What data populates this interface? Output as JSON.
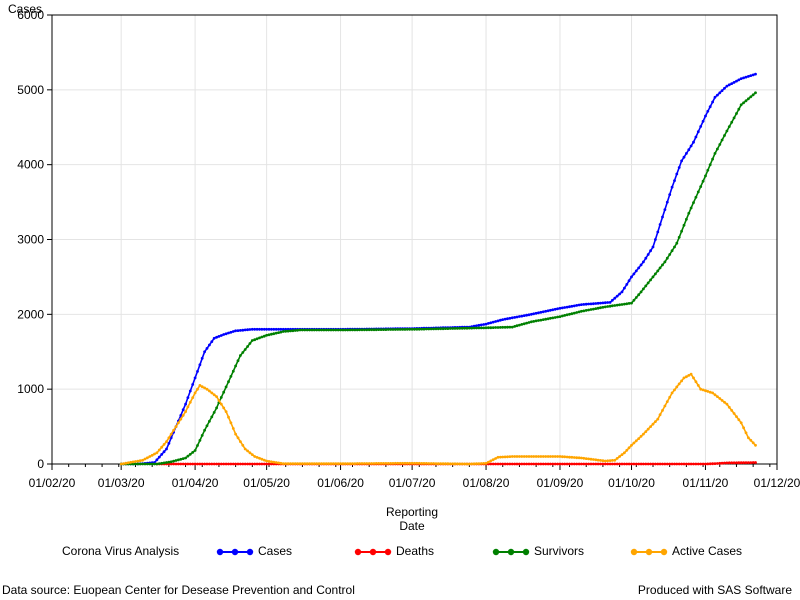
{
  "chart_data": {
    "type": "line",
    "ylabel": "Cases",
    "xlabel_lines": [
      "Reporting",
      "Date"
    ],
    "ylim": [
      0,
      6000
    ],
    "yticks": [
      0,
      1000,
      2000,
      3000,
      4000,
      5000,
      6000
    ],
    "xlim": [
      "2020-02-01",
      "2020-12-01"
    ],
    "xticks": [
      {
        "date": "2020-02-01",
        "label": "01/02/20"
      },
      {
        "date": "2020-03-01",
        "label": "01/03/20"
      },
      {
        "date": "2020-04-01",
        "label": "01/04/20"
      },
      {
        "date": "2020-05-01",
        "label": "01/05/20"
      },
      {
        "date": "2020-06-01",
        "label": "01/06/20"
      },
      {
        "date": "2020-07-01",
        "label": "01/07/20"
      },
      {
        "date": "2020-08-01",
        "label": "01/08/20"
      },
      {
        "date": "2020-09-01",
        "label": "01/09/20"
      },
      {
        "date": "2020-10-01",
        "label": "01/10/20"
      },
      {
        "date": "2020-11-01",
        "label": "01/11/20"
      },
      {
        "date": "2020-12-01",
        "label": "01/12/20"
      }
    ],
    "grid": true,
    "legend_title": "Corona Virus Analysis",
    "legend_position": "bottom",
    "series": [
      {
        "name": "Cases",
        "color": "#0000ff",
        "points": [
          [
            "2020-03-01",
            0
          ],
          [
            "2020-03-08",
            0
          ],
          [
            "2020-03-15",
            20
          ],
          [
            "2020-03-20",
            200
          ],
          [
            "2020-03-24",
            500
          ],
          [
            "2020-03-28",
            800
          ],
          [
            "2020-04-01",
            1150
          ],
          [
            "2020-04-05",
            1500
          ],
          [
            "2020-04-09",
            1680
          ],
          [
            "2020-04-13",
            1730
          ],
          [
            "2020-04-18",
            1780
          ],
          [
            "2020-04-25",
            1800
          ],
          [
            "2020-05-05",
            1800
          ],
          [
            "2020-06-01",
            1800
          ],
          [
            "2020-07-01",
            1810
          ],
          [
            "2020-07-25",
            1830
          ],
          [
            "2020-08-01",
            1870
          ],
          [
            "2020-08-08",
            1930
          ],
          [
            "2020-08-20",
            2000
          ],
          [
            "2020-09-01",
            2080
          ],
          [
            "2020-09-10",
            2130
          ],
          [
            "2020-09-22",
            2160
          ],
          [
            "2020-09-27",
            2300
          ],
          [
            "2020-10-01",
            2500
          ],
          [
            "2020-10-06",
            2700
          ],
          [
            "2020-10-10",
            2900
          ],
          [
            "2020-10-14",
            3300
          ],
          [
            "2020-10-18",
            3700
          ],
          [
            "2020-10-22",
            4050
          ],
          [
            "2020-10-27",
            4300
          ],
          [
            "2020-11-01",
            4650
          ],
          [
            "2020-11-05",
            4900
          ],
          [
            "2020-11-10",
            5050
          ],
          [
            "2020-11-16",
            5150
          ],
          [
            "2020-11-22",
            5210
          ]
        ]
      },
      {
        "name": "Deaths",
        "color": "#ff0000",
        "points": [
          [
            "2020-03-16",
            0
          ],
          [
            "2020-06-01",
            0
          ],
          [
            "2020-09-01",
            0
          ],
          [
            "2020-11-01",
            0
          ],
          [
            "2020-11-05",
            5
          ],
          [
            "2020-11-10",
            15
          ],
          [
            "2020-11-22",
            20
          ]
        ]
      },
      {
        "name": "Survivors",
        "color": "#008000",
        "points": [
          [
            "2020-03-01",
            0
          ],
          [
            "2020-03-16",
            0
          ],
          [
            "2020-03-22",
            30
          ],
          [
            "2020-03-28",
            80
          ],
          [
            "2020-04-01",
            180
          ],
          [
            "2020-04-05",
            450
          ],
          [
            "2020-04-10",
            750
          ],
          [
            "2020-04-15",
            1100
          ],
          [
            "2020-04-20",
            1450
          ],
          [
            "2020-04-25",
            1650
          ],
          [
            "2020-05-01",
            1720
          ],
          [
            "2020-05-08",
            1770
          ],
          [
            "2020-05-15",
            1790
          ],
          [
            "2020-06-01",
            1790
          ],
          [
            "2020-07-01",
            1800
          ],
          [
            "2020-08-01",
            1820
          ],
          [
            "2020-08-12",
            1830
          ],
          [
            "2020-08-20",
            1900
          ],
          [
            "2020-09-01",
            1970
          ],
          [
            "2020-09-10",
            2040
          ],
          [
            "2020-09-20",
            2100
          ],
          [
            "2020-10-01",
            2150
          ],
          [
            "2020-10-05",
            2300
          ],
          [
            "2020-10-10",
            2500
          ],
          [
            "2020-10-15",
            2700
          ],
          [
            "2020-10-20",
            2950
          ],
          [
            "2020-10-25",
            3350
          ],
          [
            "2020-11-01",
            3850
          ],
          [
            "2020-11-05",
            4150
          ],
          [
            "2020-11-10",
            4450
          ],
          [
            "2020-11-16",
            4800
          ],
          [
            "2020-11-22",
            4960
          ]
        ]
      },
      {
        "name": "Active Cases",
        "color": "#ffa500",
        "points": [
          [
            "2020-03-01",
            0
          ],
          [
            "2020-03-10",
            50
          ],
          [
            "2020-03-16",
            150
          ],
          [
            "2020-03-20",
            300
          ],
          [
            "2020-03-24",
            500
          ],
          [
            "2020-03-28",
            700
          ],
          [
            "2020-04-01",
            950
          ],
          [
            "2020-04-03",
            1050
          ],
          [
            "2020-04-06",
            1000
          ],
          [
            "2020-04-10",
            900
          ],
          [
            "2020-04-14",
            700
          ],
          [
            "2020-04-18",
            400
          ],
          [
            "2020-04-22",
            200
          ],
          [
            "2020-04-26",
            100
          ],
          [
            "2020-05-01",
            40
          ],
          [
            "2020-05-08",
            5
          ],
          [
            "2020-06-01",
            5
          ],
          [
            "2020-07-01",
            10
          ],
          [
            "2020-07-25",
            0
          ],
          [
            "2020-08-01",
            10
          ],
          [
            "2020-08-06",
            90
          ],
          [
            "2020-08-12",
            100
          ],
          [
            "2020-09-01",
            100
          ],
          [
            "2020-09-10",
            80
          ],
          [
            "2020-09-20",
            40
          ],
          [
            "2020-09-24",
            50
          ],
          [
            "2020-09-28",
            150
          ],
          [
            "2020-10-01",
            250
          ],
          [
            "2020-10-06",
            400
          ],
          [
            "2020-10-12",
            600
          ],
          [
            "2020-10-18",
            950
          ],
          [
            "2020-10-23",
            1150
          ],
          [
            "2020-10-26",
            1200
          ],
          [
            "2020-10-30",
            1000
          ],
          [
            "2020-11-04",
            950
          ],
          [
            "2020-11-10",
            800
          ],
          [
            "2020-11-16",
            550
          ],
          [
            "2020-11-19",
            350
          ],
          [
            "2020-11-22",
            250
          ]
        ]
      }
    ]
  },
  "footer": {
    "left": "Data source: Euopean Center for Desease Prevention and Control",
    "right": "Produced with SAS Software"
  }
}
